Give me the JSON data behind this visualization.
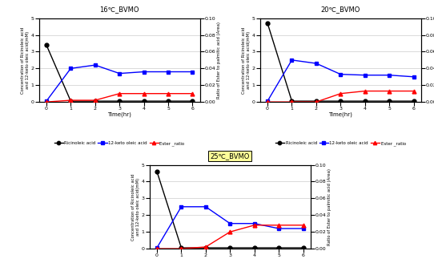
{
  "panels": [
    {
      "title": "16℃_BVMO",
      "title_bg": null,
      "time": [
        0,
        1,
        2,
        3,
        4,
        5,
        6
      ],
      "ricinoleic": [
        3.4,
        0.05,
        0.05,
        0.05,
        0.05,
        0.05,
        0.05
      ],
      "keto_oleic": [
        0.05,
        2.0,
        2.2,
        1.7,
        1.8,
        1.8,
        1.8
      ],
      "ester_ratio": [
        0.0,
        0.002,
        0.002,
        0.01,
        0.01,
        0.01,
        0.01
      ]
    },
    {
      "title": "20℃_BVMO",
      "title_bg": null,
      "time": [
        0,
        1,
        2,
        3,
        4,
        5,
        6
      ],
      "ricinoleic": [
        4.7,
        0.05,
        0.05,
        0.05,
        0.05,
        0.05,
        0.05
      ],
      "keto_oleic": [
        0.05,
        2.5,
        2.3,
        1.65,
        1.6,
        1.6,
        1.5
      ],
      "ester_ratio": [
        0.0,
        0.0,
        0.0,
        0.01,
        0.013,
        0.013,
        0.013
      ]
    },
    {
      "title": "25℃_BVMO",
      "title_bg": "#FFFF99",
      "time": [
        0,
        1,
        2,
        3,
        4,
        5,
        6
      ],
      "ricinoleic": [
        4.6,
        0.05,
        0.05,
        0.05,
        0.05,
        0.05,
        0.05
      ],
      "keto_oleic": [
        0.05,
        2.5,
        2.5,
        1.5,
        1.5,
        1.2,
        1.2
      ],
      "ester_ratio": [
        0.0,
        0.0,
        0.002,
        0.02,
        0.028,
        0.028,
        0.028
      ]
    }
  ],
  "ylim_left": [
    0,
    5
  ],
  "ylim_right": [
    0,
    0.1
  ],
  "yticks_left": [
    0,
    1,
    2,
    3,
    4,
    5
  ],
  "yticks_right": [
    0.0,
    0.02,
    0.04,
    0.06,
    0.08,
    0.1
  ],
  "xlabel": "Time(hr)",
  "ylabel_left": "Concentration of Ricinoleic acid\nand 12-keto oleic acid(mM)",
  "ylabel_right": "Ratio of Ester to palmitic acid (Area)",
  "legend_labels": [
    "Ricinoleic acid",
    "12-keto oleic acid",
    "Ester _ratio"
  ],
  "line_colors": [
    "black",
    "blue",
    "red"
  ],
  "line_markers": [
    "o",
    "s",
    "^"
  ],
  "xticks": [
    0,
    1,
    2,
    3,
    4,
    5,
    6
  ],
  "bg_color": "#ffffff",
  "grid_color": "#cccccc"
}
